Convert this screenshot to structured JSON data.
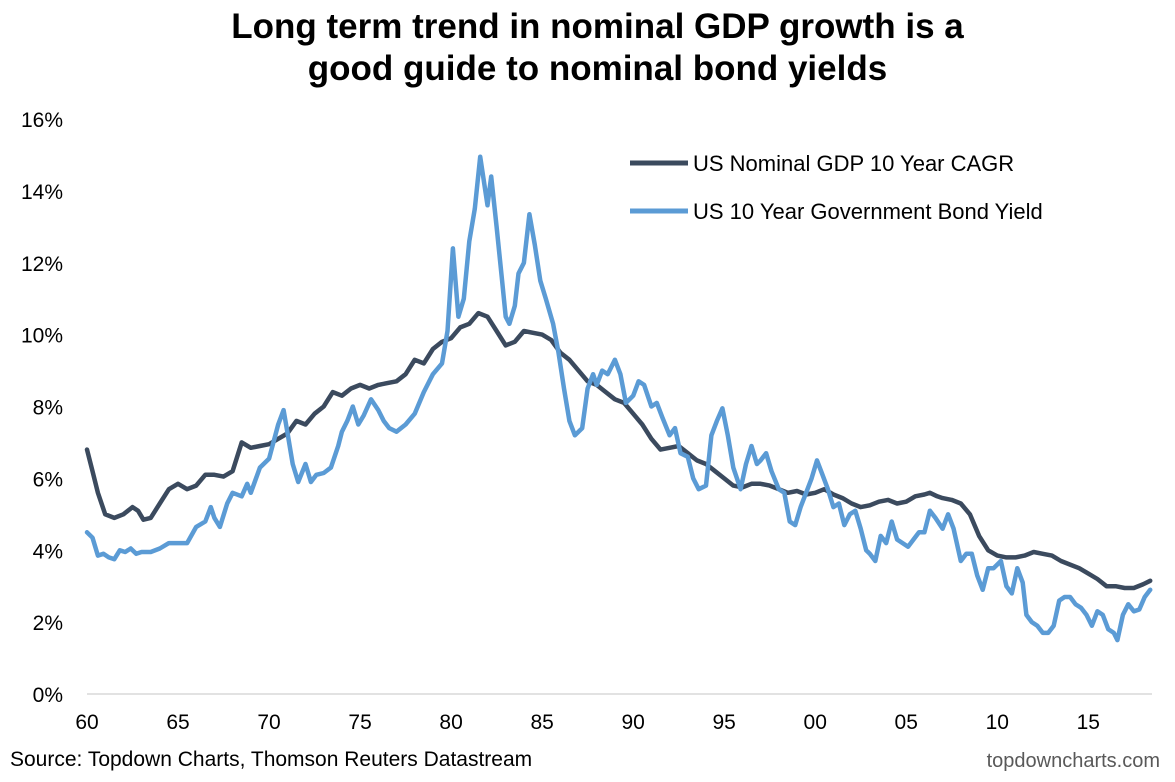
{
  "title_line1": "Long term trend in nominal GDP growth is a",
  "title_line2": "good guide to nominal bond yields",
  "source": "Source: Topdown Charts, Thomson Reuters Datastream",
  "watermark": "topdowncharts.com",
  "chart_data": {
    "type": "line",
    "title": "Long term trend in nominal GDP growth is a good guide to nominal bond yields",
    "xlabel": "",
    "ylabel": "",
    "xlim": [
      1960,
      2018.5
    ],
    "ylim": [
      0,
      16
    ],
    "y_ticks": [
      0,
      2,
      4,
      6,
      8,
      10,
      12,
      14,
      16
    ],
    "y_tick_labels": [
      "0%",
      "2%",
      "4%",
      "6%",
      "8%",
      "10%",
      "12%",
      "14%",
      "16%"
    ],
    "x_ticks": [
      1960,
      1965,
      1970,
      1975,
      1980,
      1985,
      1990,
      1995,
      2000,
      2005,
      2010,
      2015
    ],
    "x_tick_labels": [
      "60",
      "65",
      "70",
      "75",
      "80",
      "85",
      "90",
      "95",
      "00",
      "05",
      "10",
      "15"
    ],
    "grid": false,
    "legend_position": "top-right",
    "series": [
      {
        "name": "US Nominal GDP 10 Year CAGR",
        "color": "#3b4a5e",
        "points": [
          [
            1960.0,
            6.8
          ],
          [
            1960.3,
            6.2
          ],
          [
            1960.6,
            5.6
          ],
          [
            1961.0,
            5.0
          ],
          [
            1961.5,
            4.9
          ],
          [
            1962.0,
            5.0
          ],
          [
            1962.5,
            5.2
          ],
          [
            1962.8,
            5.1
          ],
          [
            1963.1,
            4.85
          ],
          [
            1963.5,
            4.9
          ],
          [
            1964.0,
            5.3
          ],
          [
            1964.5,
            5.7
          ],
          [
            1965.0,
            5.85
          ],
          [
            1965.5,
            5.7
          ],
          [
            1966.0,
            5.8
          ],
          [
            1966.5,
            6.1
          ],
          [
            1967.0,
            6.1
          ],
          [
            1967.5,
            6.05
          ],
          [
            1968.0,
            6.2
          ],
          [
            1968.5,
            7.0
          ],
          [
            1969.0,
            6.85
          ],
          [
            1969.5,
            6.9
          ],
          [
            1970.0,
            6.95
          ],
          [
            1970.5,
            7.1
          ],
          [
            1971.0,
            7.25
          ],
          [
            1971.5,
            7.6
          ],
          [
            1972.0,
            7.5
          ],
          [
            1972.5,
            7.8
          ],
          [
            1973.0,
            8.0
          ],
          [
            1973.5,
            8.4
          ],
          [
            1974.0,
            8.3
          ],
          [
            1974.5,
            8.5
          ],
          [
            1975.0,
            8.6
          ],
          [
            1975.5,
            8.5
          ],
          [
            1976.0,
            8.6
          ],
          [
            1976.5,
            8.65
          ],
          [
            1977.0,
            8.7
          ],
          [
            1977.5,
            8.9
          ],
          [
            1978.0,
            9.3
          ],
          [
            1978.5,
            9.2
          ],
          [
            1979.0,
            9.6
          ],
          [
            1979.5,
            9.8
          ],
          [
            1980.0,
            9.9
          ],
          [
            1980.5,
            10.2
          ],
          [
            1981.0,
            10.3
          ],
          [
            1981.5,
            10.6
          ],
          [
            1982.0,
            10.5
          ],
          [
            1982.5,
            10.1
          ],
          [
            1983.0,
            9.7
          ],
          [
            1983.5,
            9.8
          ],
          [
            1984.0,
            10.1
          ],
          [
            1984.5,
            10.05
          ],
          [
            1985.0,
            10.0
          ],
          [
            1985.5,
            9.85
          ],
          [
            1986.0,
            9.5
          ],
          [
            1986.5,
            9.3
          ],
          [
            1987.0,
            9.0
          ],
          [
            1987.5,
            8.7
          ],
          [
            1988.0,
            8.6
          ],
          [
            1988.5,
            8.4
          ],
          [
            1989.0,
            8.2
          ],
          [
            1989.5,
            8.1
          ],
          [
            1990.0,
            7.8
          ],
          [
            1990.5,
            7.5
          ],
          [
            1991.0,
            7.1
          ],
          [
            1991.5,
            6.8
          ],
          [
            1992.0,
            6.85
          ],
          [
            1992.5,
            6.9
          ],
          [
            1993.0,
            6.7
          ],
          [
            1993.5,
            6.5
          ],
          [
            1994.0,
            6.4
          ],
          [
            1994.5,
            6.2
          ],
          [
            1995.0,
            6.0
          ],
          [
            1995.5,
            5.8
          ],
          [
            1996.0,
            5.75
          ],
          [
            1996.5,
            5.85
          ],
          [
            1997.0,
            5.85
          ],
          [
            1997.5,
            5.8
          ],
          [
            1998.0,
            5.7
          ],
          [
            1998.5,
            5.6
          ],
          [
            1999.0,
            5.65
          ],
          [
            1999.5,
            5.55
          ],
          [
            2000.0,
            5.6
          ],
          [
            2000.5,
            5.7
          ],
          [
            2001.0,
            5.55
          ],
          [
            2001.5,
            5.45
          ],
          [
            2002.0,
            5.3
          ],
          [
            2002.5,
            5.2
          ],
          [
            2003.0,
            5.25
          ],
          [
            2003.5,
            5.35
          ],
          [
            2004.0,
            5.4
          ],
          [
            2004.5,
            5.3
          ],
          [
            2005.0,
            5.35
          ],
          [
            2005.5,
            5.5
          ],
          [
            2006.0,
            5.55
          ],
          [
            2006.3,
            5.6
          ],
          [
            2006.7,
            5.5
          ],
          [
            2007.0,
            5.45
          ],
          [
            2007.5,
            5.4
          ],
          [
            2008.0,
            5.3
          ],
          [
            2008.5,
            5.0
          ],
          [
            2009.0,
            4.4
          ],
          [
            2009.5,
            4.0
          ],
          [
            2010.0,
            3.85
          ],
          [
            2010.5,
            3.8
          ],
          [
            2011.0,
            3.8
          ],
          [
            2011.5,
            3.85
          ],
          [
            2012.0,
            3.95
          ],
          [
            2012.5,
            3.9
          ],
          [
            2013.0,
            3.85
          ],
          [
            2013.5,
            3.7
          ],
          [
            2014.0,
            3.6
          ],
          [
            2014.5,
            3.5
          ],
          [
            2015.0,
            3.35
          ],
          [
            2015.5,
            3.2
          ],
          [
            2016.0,
            3.0
          ],
          [
            2016.5,
            3.0
          ],
          [
            2017.0,
            2.95
          ],
          [
            2017.5,
            2.95
          ],
          [
            2018.0,
            3.05
          ],
          [
            2018.4,
            3.15
          ]
        ]
      },
      {
        "name": "US 10 Year Government Bond Yield",
        "color": "#5b9bd5",
        "points": [
          [
            1960.0,
            4.5
          ],
          [
            1960.3,
            4.35
          ],
          [
            1960.6,
            3.85
          ],
          [
            1960.9,
            3.9
          ],
          [
            1961.2,
            3.8
          ],
          [
            1961.5,
            3.75
          ],
          [
            1961.8,
            4.0
          ],
          [
            1962.1,
            3.95
          ],
          [
            1962.4,
            4.05
          ],
          [
            1962.7,
            3.9
          ],
          [
            1963.0,
            3.95
          ],
          [
            1963.5,
            3.95
          ],
          [
            1964.0,
            4.05
          ],
          [
            1964.5,
            4.2
          ],
          [
            1965.0,
            4.2
          ],
          [
            1965.5,
            4.2
          ],
          [
            1966.0,
            4.65
          ],
          [
            1966.5,
            4.8
          ],
          [
            1966.8,
            5.2
          ],
          [
            1967.0,
            4.9
          ],
          [
            1967.3,
            4.65
          ],
          [
            1967.7,
            5.3
          ],
          [
            1968.0,
            5.6
          ],
          [
            1968.5,
            5.5
          ],
          [
            1968.8,
            5.85
          ],
          [
            1969.0,
            5.6
          ],
          [
            1969.5,
            6.3
          ],
          [
            1970.0,
            6.55
          ],
          [
            1970.5,
            7.5
          ],
          [
            1970.8,
            7.9
          ],
          [
            1971.0,
            7.3
          ],
          [
            1971.3,
            6.4
          ],
          [
            1971.6,
            5.9
          ],
          [
            1972.0,
            6.4
          ],
          [
            1972.3,
            5.9
          ],
          [
            1972.6,
            6.1
          ],
          [
            1973.0,
            6.15
          ],
          [
            1973.4,
            6.3
          ],
          [
            1973.8,
            6.9
          ],
          [
            1974.0,
            7.3
          ],
          [
            1974.3,
            7.6
          ],
          [
            1974.6,
            8.0
          ],
          [
            1974.9,
            7.5
          ],
          [
            1975.2,
            7.75
          ],
          [
            1975.6,
            8.2
          ],
          [
            1976.0,
            7.9
          ],
          [
            1976.3,
            7.6
          ],
          [
            1976.6,
            7.4
          ],
          [
            1977.0,
            7.3
          ],
          [
            1977.5,
            7.5
          ],
          [
            1978.0,
            7.8
          ],
          [
            1978.5,
            8.4
          ],
          [
            1979.0,
            8.9
          ],
          [
            1979.5,
            9.2
          ],
          [
            1979.8,
            10.1
          ],
          [
            1980.1,
            12.4
          ],
          [
            1980.4,
            10.5
          ],
          [
            1980.7,
            11.0
          ],
          [
            1981.0,
            12.6
          ],
          [
            1981.3,
            13.5
          ],
          [
            1981.6,
            14.95
          ],
          [
            1982.0,
            13.6
          ],
          [
            1982.2,
            14.4
          ],
          [
            1982.5,
            13.0
          ],
          [
            1982.8,
            11.5
          ],
          [
            1983.0,
            10.5
          ],
          [
            1983.2,
            10.3
          ],
          [
            1983.5,
            10.8
          ],
          [
            1983.7,
            11.7
          ],
          [
            1984.0,
            12.0
          ],
          [
            1984.3,
            13.35
          ],
          [
            1984.6,
            12.5
          ],
          [
            1984.9,
            11.5
          ],
          [
            1985.2,
            11.0
          ],
          [
            1985.6,
            10.3
          ],
          [
            1985.9,
            9.5
          ],
          [
            1986.2,
            8.5
          ],
          [
            1986.5,
            7.6
          ],
          [
            1986.8,
            7.2
          ],
          [
            1987.2,
            7.4
          ],
          [
            1987.5,
            8.5
          ],
          [
            1987.8,
            8.9
          ],
          [
            1988.0,
            8.6
          ],
          [
            1988.3,
            9.0
          ],
          [
            1988.6,
            8.9
          ],
          [
            1989.0,
            9.3
          ],
          [
            1989.3,
            8.9
          ],
          [
            1989.6,
            8.1
          ],
          [
            1990.0,
            8.3
          ],
          [
            1990.3,
            8.7
          ],
          [
            1990.6,
            8.6
          ],
          [
            1991.0,
            8.0
          ],
          [
            1991.3,
            8.1
          ],
          [
            1991.6,
            7.7
          ],
          [
            1992.0,
            7.2
          ],
          [
            1992.3,
            7.4
          ],
          [
            1992.6,
            6.7
          ],
          [
            1993.0,
            6.6
          ],
          [
            1993.3,
            6.0
          ],
          [
            1993.6,
            5.7
          ],
          [
            1994.0,
            5.8
          ],
          [
            1994.3,
            7.2
          ],
          [
            1994.6,
            7.6
          ],
          [
            1994.9,
            7.95
          ],
          [
            1995.2,
            7.2
          ],
          [
            1995.5,
            6.3
          ],
          [
            1995.9,
            5.7
          ],
          [
            1996.2,
            6.4
          ],
          [
            1996.5,
            6.9
          ],
          [
            1996.8,
            6.4
          ],
          [
            1997.0,
            6.5
          ],
          [
            1997.3,
            6.7
          ],
          [
            1997.6,
            6.2
          ],
          [
            1998.0,
            5.7
          ],
          [
            1998.3,
            5.6
          ],
          [
            1998.6,
            4.8
          ],
          [
            1998.9,
            4.7
          ],
          [
            1999.2,
            5.2
          ],
          [
            1999.5,
            5.6
          ],
          [
            1999.8,
            6.0
          ],
          [
            2000.1,
            6.5
          ],
          [
            2000.4,
            6.1
          ],
          [
            2000.7,
            5.7
          ],
          [
            2001.0,
            5.2
          ],
          [
            2001.3,
            5.3
          ],
          [
            2001.6,
            4.7
          ],
          [
            2001.9,
            5.0
          ],
          [
            2002.2,
            5.1
          ],
          [
            2002.5,
            4.6
          ],
          [
            2002.8,
            4.0
          ],
          [
            2003.0,
            3.9
          ],
          [
            2003.3,
            3.7
          ],
          [
            2003.6,
            4.4
          ],
          [
            2003.9,
            4.2
          ],
          [
            2004.2,
            4.8
          ],
          [
            2004.5,
            4.3
          ],
          [
            2004.8,
            4.2
          ],
          [
            2005.1,
            4.1
          ],
          [
            2005.4,
            4.3
          ],
          [
            2005.7,
            4.5
          ],
          [
            2006.0,
            4.5
          ],
          [
            2006.3,
            5.1
          ],
          [
            2006.6,
            4.9
          ],
          [
            2007.0,
            4.6
          ],
          [
            2007.3,
            5.0
          ],
          [
            2007.6,
            4.6
          ],
          [
            2008.0,
            3.7
          ],
          [
            2008.3,
            3.9
          ],
          [
            2008.6,
            3.9
          ],
          [
            2008.9,
            3.3
          ],
          [
            2009.2,
            2.9
          ],
          [
            2009.5,
            3.5
          ],
          [
            2009.8,
            3.5
          ],
          [
            2010.2,
            3.7
          ],
          [
            2010.5,
            3.0
          ],
          [
            2010.8,
            2.8
          ],
          [
            2011.1,
            3.5
          ],
          [
            2011.4,
            3.1
          ],
          [
            2011.6,
            2.2
          ],
          [
            2011.9,
            2.0
          ],
          [
            2012.2,
            1.9
          ],
          [
            2012.5,
            1.7
          ],
          [
            2012.8,
            1.7
          ],
          [
            2013.1,
            1.9
          ],
          [
            2013.4,
            2.6
          ],
          [
            2013.7,
            2.7
          ],
          [
            2014.0,
            2.7
          ],
          [
            2014.3,
            2.5
          ],
          [
            2014.6,
            2.4
          ],
          [
            2014.9,
            2.2
          ],
          [
            2015.2,
            1.9
          ],
          [
            2015.5,
            2.3
          ],
          [
            2015.8,
            2.2
          ],
          [
            2016.1,
            1.8
          ],
          [
            2016.4,
            1.7
          ],
          [
            2016.6,
            1.5
          ],
          [
            2016.9,
            2.2
          ],
          [
            2017.2,
            2.5
          ],
          [
            2017.5,
            2.3
          ],
          [
            2017.8,
            2.35
          ],
          [
            2018.1,
            2.7
          ],
          [
            2018.4,
            2.9
          ]
        ]
      }
    ]
  }
}
